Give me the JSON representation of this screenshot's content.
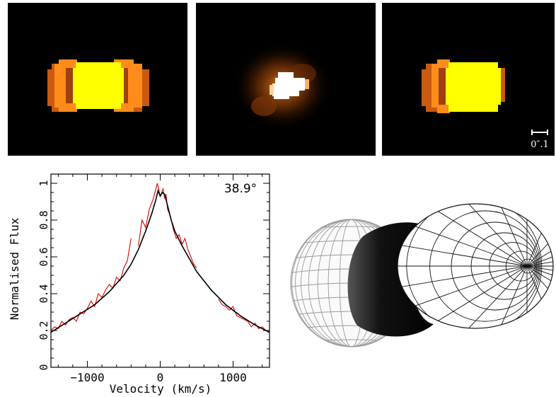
{
  "figure": {
    "panels": [
      {
        "name": "model-image-left",
        "description_color": "#ffff00"
      },
      {
        "name": "observed-image",
        "description_color": "#ffffff"
      },
      {
        "name": "model-image-right",
        "description_color": "#ffff00"
      }
    ],
    "scale_bar_label": "0″.1",
    "inclination_label": "38.9°"
  },
  "chart_data": {
    "type": "line",
    "xlabel": "Velocity (km/s)",
    "ylabel": "Normalised Flux",
    "xlim": [
      -1500,
      1500
    ],
    "ylim": [
      0,
      1.05
    ],
    "xticks": [
      -1000,
      0,
      1000
    ],
    "yticks": [
      0,
      0.2,
      0.4,
      0.6,
      0.8,
      1
    ],
    "ytick_labels": [
      "0",
      "0.2",
      "0.4",
      "0.6",
      "0.8",
      "1"
    ],
    "xtick_labels": [
      "−1000",
      "0",
      "1000"
    ],
    "series": [
      {
        "color": "#000000",
        "x": [
          -1500,
          -1300,
          -1100,
          -900,
          -700,
          -500,
          -400,
          -300,
          -200,
          -120,
          -60,
          -30,
          0,
          30,
          60,
          100,
          150,
          200,
          300,
          400,
          500,
          700,
          900,
          1100,
          1300,
          1500
        ],
        "values": [
          0.19,
          0.24,
          0.29,
          0.34,
          0.41,
          0.5,
          0.56,
          0.64,
          0.74,
          0.83,
          0.91,
          0.96,
          0.93,
          0.95,
          0.94,
          0.88,
          0.8,
          0.74,
          0.66,
          0.59,
          0.52,
          0.42,
          0.34,
          0.28,
          0.23,
          0.19
        ]
      },
      {
        "color": "#e00000",
        "x": [
          -1500,
          -1450,
          -1400,
          -1350,
          -1300,
          -1250,
          -1200,
          -1150,
          -1100,
          -1050,
          -1000,
          -950,
          -900,
          -850,
          -800,
          -750,
          -700,
          -650,
          -600,
          -550,
          -500,
          -450,
          -400,
          null,
          -300,
          -250,
          -200,
          -150,
          -100,
          -60,
          -40,
          0,
          20,
          40,
          60,
          80,
          100,
          140,
          180,
          220,
          260,
          300,
          340,
          380,
          420,
          460,
          500,
          null,
          800,
          850,
          900,
          950,
          1000,
          1050,
          1100,
          1150,
          1200,
          1250,
          1300,
          1350,
          1400,
          1450,
          1500
        ],
        "values": [
          0.2,
          0.22,
          0.21,
          0.25,
          0.23,
          0.26,
          0.27,
          0.25,
          0.3,
          0.29,
          0.32,
          0.36,
          0.33,
          0.4,
          0.38,
          0.42,
          0.45,
          0.43,
          0.49,
          0.47,
          0.54,
          0.58,
          0.7,
          null,
          0.66,
          0.8,
          0.76,
          0.86,
          0.91,
          0.97,
          1.0,
          0.93,
          0.95,
          0.97,
          0.92,
          0.94,
          0.86,
          0.82,
          0.75,
          0.7,
          0.72,
          0.67,
          0.7,
          0.64,
          0.6,
          0.56,
          0.54,
          null,
          0.37,
          0.34,
          0.33,
          0.31,
          0.33,
          0.28,
          0.27,
          0.26,
          0.25,
          0.22,
          0.24,
          0.21,
          0.22,
          0.2,
          0.19
        ]
      }
    ]
  }
}
